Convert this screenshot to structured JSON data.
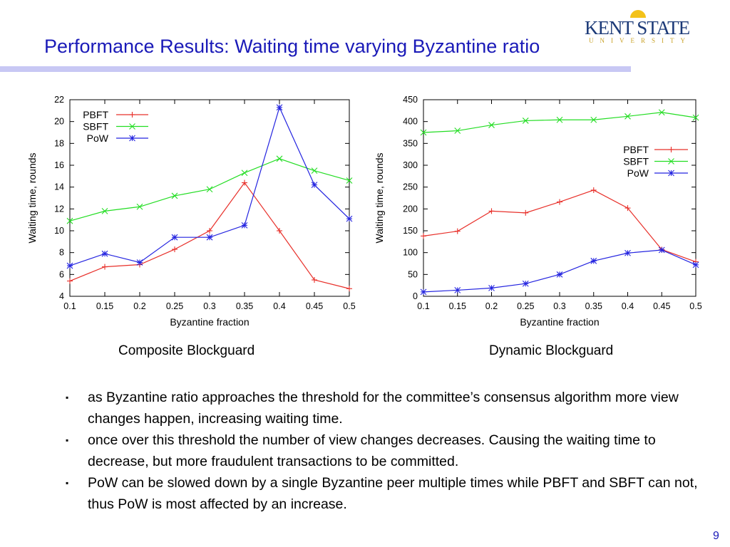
{
  "slide": {
    "title": "Performance Results: Waiting time varying Byzantine ratio",
    "logo": {
      "main": "KENT STATE",
      "sub": "UNIVERSITY"
    },
    "captions": [
      "Composite Blockguard",
      "Dynamic Blockguard"
    ],
    "bullets": [
      "as Byzantine ratio approaches the threshold for the committee’s consensus algorithm more view changes happen, increasing waiting time.",
      "once over this threshold the number of view changes decreases. Causing  the waiting time to decrease, but more fraudulent transactions to be committed.",
      "PoW can be slowed down by a single Byzantine peer multiple times while PBFT and SBFT can not, thus PoW is most affected by an increase."
    ],
    "bullet_marker": "▪",
    "page_number": "9",
    "colors": {
      "title": "#1a1ab8",
      "PBFT": "#e8302a",
      "SBFT": "#22dd22",
      "PoW": "#2424e0"
    }
  },
  "chart_data": [
    {
      "type": "line",
      "xlabel": "Byzantine fraction",
      "ylabel": "Waiting time, rounds",
      "x": [
        0.1,
        0.15,
        0.2,
        0.25,
        0.3,
        0.35,
        0.4,
        0.45,
        0.5
      ],
      "x_ticks": [
        "0.1",
        "0.15",
        "0.2",
        "0.25",
        "0.3",
        "0.35",
        "0.4",
        "0.45",
        "0.5"
      ],
      "ylim": [
        4,
        22
      ],
      "y_ticks": [
        "4",
        "6",
        "8",
        "10",
        "12",
        "14",
        "16",
        "18",
        "20",
        "22"
      ],
      "legend": "top-left",
      "grid": false,
      "series": [
        {
          "name": "PBFT",
          "marker": "+",
          "values": [
            5.4,
            6.7,
            6.9,
            8.3,
            10.0,
            14.4,
            10.0,
            5.5,
            4.7
          ]
        },
        {
          "name": "SBFT",
          "marker": "x",
          "values": [
            10.9,
            11.8,
            12.2,
            13.2,
            13.8,
            15.3,
            16.6,
            15.5,
            14.6
          ]
        },
        {
          "name": "PoW",
          "marker": "*",
          "values": [
            6.8,
            7.9,
            7.1,
            9.4,
            9.4,
            10.5,
            21.3,
            14.2,
            11.1
          ]
        }
      ]
    },
    {
      "type": "line",
      "xlabel": "Byzantine fraction",
      "ylabel": "Waiting time, rounds",
      "x": [
        0.1,
        0.15,
        0.2,
        0.25,
        0.3,
        0.35,
        0.4,
        0.45,
        0.5
      ],
      "x_ticks": [
        "0.1",
        "0.15",
        "0.2",
        "0.25",
        "0.3",
        "0.35",
        "0.4",
        "0.45",
        "0.5"
      ],
      "ylim": [
        0,
        450
      ],
      "y_ticks": [
        "0",
        "50",
        "100",
        "150",
        "200",
        "250",
        "300",
        "350",
        "400",
        "450"
      ],
      "legend": "right",
      "grid": false,
      "series": [
        {
          "name": "PBFT",
          "marker": "+",
          "values": [
            138,
            149,
            195,
            191,
            216,
            243,
            202,
            107,
            79
          ]
        },
        {
          "name": "SBFT",
          "marker": "x",
          "values": [
            375,
            379,
            392,
            402,
            404,
            404,
            412,
            421,
            409
          ]
        },
        {
          "name": "PoW",
          "marker": "*",
          "values": [
            10,
            14,
            19,
            29,
            50,
            81,
            99,
            106,
            72
          ]
        }
      ]
    }
  ]
}
